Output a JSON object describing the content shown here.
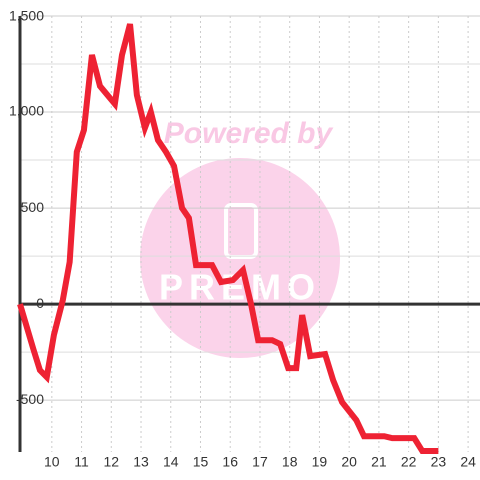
{
  "chart_data": {
    "type": "line",
    "watermark": [
      "Powered by",
      "PREMO"
    ],
    "x": [
      8.93,
      9.39,
      9.6,
      9.83,
      10.07,
      10.37,
      10.6,
      10.84,
      11.08,
      11.35,
      11.62,
      12.12,
      12.36,
      12.63,
      12.86,
      13.13,
      13.33,
      13.57,
      13.84,
      14.11,
      14.38,
      14.61,
      14.85,
      15.39,
      15.69,
      16.09,
      16.43,
      16.7,
      16.94,
      17.41,
      17.68,
      17.95,
      18.22,
      18.42,
      18.69,
      19.19,
      19.46,
      19.76,
      20.24,
      20.5,
      21.18,
      21.45,
      22.19,
      22.46,
      23.0
    ],
    "series": [
      {
        "color": "#ee2233",
        "values": [
          0,
          -240,
          -344,
          -380,
          -161,
          21,
          219,
          792,
          906,
          1297,
          1135,
          1042,
          1297,
          1458,
          1089,
          917,
          1000,
          854,
          792,
          719,
          500,
          448,
          203,
          203,
          115,
          125,
          177,
          0,
          -188,
          -188,
          -208,
          -333,
          -333,
          -57,
          -271,
          -260,
          -396,
          -510,
          -604,
          -688,
          -688,
          -698,
          -698,
          -765,
          -765
        ]
      }
    ],
    "xlim": [
      8.93,
      24.4
    ],
    "xticks": [
      10,
      11,
      12,
      13,
      14,
      15,
      16,
      17,
      18,
      19,
      20,
      21,
      22,
      23,
      24
    ],
    "ylim": [
      -770,
      1500
    ],
    "yticks": [
      -500,
      0,
      500,
      {
        "value": 1000,
        "label": "1,000"
      },
      {
        "value": 1500,
        "label": "1,500"
      }
    ],
    "yminorticks": [
      -250,
      250,
      750,
      1250
    ],
    "grid": true
  }
}
